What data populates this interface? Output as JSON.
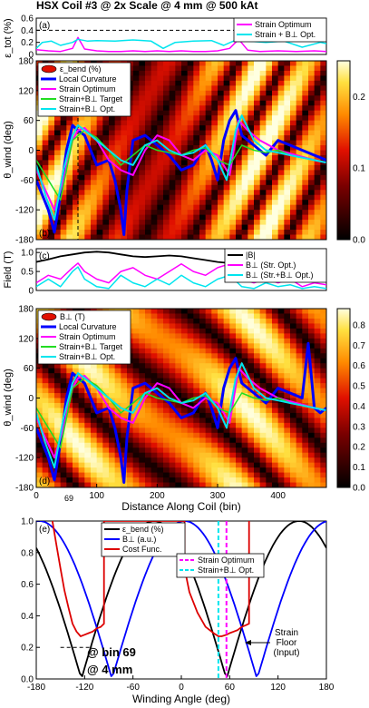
{
  "figure": {
    "title": "HSX Coil #3 @ 2x Scale @ 4 mm @ 500 kAt",
    "xlabel_coil": "Distance Along Coil (bin)",
    "xlabel_angle": "Winding Angle (deg)",
    "bin_marker": "69",
    "annotation_bin": "@ bin 69",
    "annotation_mm": "@ 4 mm",
    "annotation_floor": "Strain\nFloor\n(Input)"
  },
  "colors": {
    "magenta": "#ff00ff",
    "cyan": "#00e5ee",
    "blue": "#0000ff",
    "green": "#22dd22",
    "black": "#000000",
    "red": "#dd0000"
  },
  "chart_data": [
    {
      "panel": "a",
      "type": "line",
      "ylabel": "ε_tot (%)",
      "xlim": [
        0,
        480
      ],
      "ylim": [
        0,
        0.6
      ],
      "yticks": [
        "0",
        "0.2",
        "0.4",
        "0.6"
      ],
      "floor": 0.4,
      "legend": [
        "Strain Optimum",
        "Strain + B⊥ Opt."
      ],
      "series": [
        {
          "name": "Strain Optimum",
          "color": "magenta",
          "x": [
            0,
            20,
            40,
            60,
            69,
            80,
            100,
            120,
            140,
            160,
            180,
            200,
            220,
            240,
            260,
            280,
            300,
            320,
            335,
            350,
            370,
            400,
            430,
            460,
            480
          ],
          "y": [
            0.08,
            0.06,
            0.05,
            0.1,
            0.28,
            0.09,
            0.06,
            0.05,
            0.05,
            0.06,
            0.05,
            0.06,
            0.05,
            0.06,
            0.05,
            0.05,
            0.06,
            0.1,
            0.25,
            0.07,
            0.05,
            0.06,
            0.05,
            0.06,
            0.05
          ]
        },
        {
          "name": "Strain + B⊥ Opt.",
          "color": "cyan",
          "x": [
            0,
            10,
            25,
            40,
            60,
            69,
            85,
            100,
            130,
            160,
            190,
            210,
            230,
            260,
            290,
            310,
            335,
            350,
            380,
            410,
            440,
            470,
            480
          ],
          "y": [
            0.1,
            0.2,
            0.22,
            0.15,
            0.2,
            0.25,
            0.22,
            0.23,
            0.22,
            0.24,
            0.22,
            0.1,
            0.2,
            0.22,
            0.23,
            0.15,
            0.26,
            0.22,
            0.2,
            0.22,
            0.12,
            0.2,
            0.18
          ]
        }
      ]
    },
    {
      "panel": "b",
      "type": "heatmap",
      "ylabel": "θ_wind (deg)",
      "xlim": [
        0,
        480
      ],
      "ylim": [
        -180,
        180
      ],
      "yticks": [
        "-180",
        "-120",
        "-60",
        "0",
        "60",
        "120",
        "180"
      ],
      "colorbar_ticks": [
        "0.0",
        "0.1",
        "0.2"
      ],
      "colorbar_range": [
        0,
        0.25
      ],
      "legend_title": "ε_bend (%)",
      "legend": [
        "Local Curvature",
        "Strain Optimum",
        "Strain+B⊥ Target",
        "Strain+B⊥ Opt."
      ],
      "series": [
        {
          "name": "Local Curvature",
          "color": "blue",
          "x": [
            0,
            20,
            30,
            40,
            50,
            60,
            69,
            80,
            100,
            120,
            130,
            140,
            145,
            150,
            160,
            180,
            200,
            220,
            240,
            260,
            280,
            290,
            300,
            310,
            320,
            330,
            340,
            360,
            380,
            400,
            420,
            440,
            460,
            480
          ],
          "y": [
            -60,
            -120,
            -165,
            -90,
            0,
            50,
            40,
            30,
            -30,
            -20,
            -60,
            -120,
            -170,
            -80,
            20,
            30,
            10,
            -10,
            -40,
            -30,
            10,
            -20,
            -60,
            20,
            60,
            80,
            30,
            10,
            -10,
            20,
            10,
            0,
            -10,
            -20
          ]
        },
        {
          "name": "Strain Optimum",
          "color": "magenta",
          "x": [
            0,
            15,
            30,
            45,
            60,
            69,
            80,
            100,
            120,
            140,
            160,
            180,
            200,
            220,
            240,
            260,
            280,
            300,
            320,
            335,
            350,
            370,
            400,
            430,
            460,
            480
          ],
          "y": [
            -40,
            -80,
            -120,
            -60,
            20,
            40,
            45,
            20,
            -20,
            -40,
            -50,
            0,
            30,
            20,
            -10,
            -20,
            0,
            -10,
            -50,
            60,
            40,
            20,
            0,
            -10,
            -20,
            -25
          ]
        },
        {
          "name": "Strain+B⊥ Target",
          "color": "green",
          "x": [
            0,
            20,
            40,
            60,
            80,
            100,
            120,
            140,
            160,
            180,
            200,
            220,
            240,
            260,
            280,
            300,
            320,
            340,
            360,
            380,
            400,
            420,
            440,
            460,
            480
          ],
          "y": [
            -20,
            -60,
            -100,
            20,
            40,
            25,
            0,
            -30,
            -10,
            10,
            0,
            -5,
            -10,
            0,
            5,
            -20,
            -30,
            10,
            0,
            -5,
            0,
            -10,
            -15,
            -20,
            -25
          ]
        },
        {
          "name": "Strain+B⊥ Opt.",
          "color": "cyan",
          "x": [
            0,
            15,
            30,
            45,
            60,
            69,
            80,
            100,
            120,
            140,
            160,
            180,
            200,
            220,
            240,
            260,
            280,
            300,
            315,
            330,
            340,
            360,
            380,
            400,
            420,
            440,
            460,
            480
          ],
          "y": [
            -30,
            -90,
            -140,
            -40,
            30,
            50,
            40,
            20,
            0,
            -20,
            -30,
            10,
            20,
            0,
            -10,
            -5,
            10,
            -20,
            -60,
            40,
            70,
            20,
            0,
            -5,
            -10,
            -15,
            -20,
            -25
          ]
        }
      ]
    },
    {
      "panel": "c",
      "type": "line",
      "ylabel": "Field (T)",
      "xlim": [
        0,
        480
      ],
      "ylim": [
        0,
        1.1
      ],
      "yticks": [
        "0",
        "0.5",
        "1.0"
      ],
      "legend": [
        "|B|",
        "B⊥ (Str. Opt.)",
        "B⊥ (Str.+B⊥ Opt.)"
      ],
      "series": [
        {
          "name": "|B|",
          "color": "black",
          "x": [
            0,
            20,
            40,
            60,
            80,
            100,
            120,
            140,
            160,
            180,
            200,
            220,
            240,
            260,
            280,
            300,
            320,
            340,
            360,
            380,
            400,
            420,
            440,
            460,
            480
          ],
          "y": [
            0.75,
            0.82,
            0.9,
            0.95,
            1.0,
            1.02,
            1.0,
            0.95,
            0.9,
            0.88,
            0.9,
            0.92,
            0.9,
            0.85,
            0.8,
            0.75,
            0.72,
            0.68,
            0.62,
            0.58,
            0.55,
            0.5,
            0.48,
            0.45,
            0.42
          ]
        },
        {
          "name": "B⊥ (Str. Opt.)",
          "color": "magenta",
          "x": [
            0,
            20,
            40,
            60,
            69,
            80,
            100,
            120,
            140,
            160,
            180,
            200,
            220,
            240,
            260,
            280,
            300,
            320,
            340,
            360,
            380,
            400,
            420,
            440,
            460,
            480
          ],
          "y": [
            0.2,
            0.4,
            0.3,
            0.6,
            0.72,
            0.5,
            0.3,
            0.2,
            0.5,
            0.6,
            0.4,
            0.3,
            0.5,
            0.7,
            0.5,
            0.4,
            0.6,
            0.7,
            0.3,
            0.2,
            0.3,
            0.2,
            0.3,
            0.1,
            0.2,
            0.15
          ]
        },
        {
          "name": "B⊥ (Str.+B⊥ Opt.)",
          "color": "cyan",
          "x": [
            0,
            20,
            40,
            60,
            69,
            80,
            100,
            120,
            140,
            160,
            180,
            200,
            220,
            240,
            260,
            280,
            300,
            320,
            340,
            360,
            380,
            400,
            420,
            440,
            460,
            480
          ],
          "y": [
            0.1,
            0.3,
            0.1,
            0.5,
            0.62,
            0.3,
            0.1,
            0.05,
            0.4,
            0.2,
            0.1,
            0.3,
            0.15,
            0.4,
            0.2,
            0.1,
            0.3,
            0.4,
            0.1,
            0.05,
            0.2,
            0.1,
            0.15,
            0.05,
            0.1,
            0.05
          ]
        }
      ]
    },
    {
      "panel": "d",
      "type": "heatmap",
      "ylabel": "θ_wind (deg)",
      "xlim": [
        0,
        480
      ],
      "ylim": [
        -180,
        180
      ],
      "yticks": [
        "-180",
        "-120",
        "-60",
        "0",
        "60",
        "120",
        "180"
      ],
      "xticks": [
        "0",
        "100",
        "200",
        "300",
        "400"
      ],
      "colorbar_ticks": [
        "0.0",
        "0.1",
        "0.2",
        "0.3",
        "0.4",
        "0.5",
        "0.6",
        "0.7",
        "0.8"
      ],
      "colorbar_range": [
        0,
        0.88
      ],
      "legend_title": "B⊥ (T)",
      "legend": [
        "Local Curvature",
        "Strain Optimum",
        "Strain+B⊥ Target",
        "Strain+B⊥ Opt."
      ],
      "series": [
        {
          "name": "Local Curvature",
          "color": "blue",
          "x": [
            0,
            20,
            30,
            40,
            50,
            60,
            69,
            80,
            100,
            120,
            130,
            140,
            145,
            150,
            160,
            180,
            200,
            220,
            240,
            260,
            280,
            290,
            300,
            310,
            320,
            330,
            340,
            360,
            380,
            400,
            420,
            440,
            450,
            460,
            470,
            480
          ],
          "y": [
            -60,
            -120,
            -165,
            -90,
            0,
            50,
            40,
            30,
            -30,
            -20,
            -60,
            -120,
            -170,
            -80,
            20,
            30,
            10,
            -10,
            -40,
            -30,
            10,
            -20,
            -60,
            20,
            60,
            80,
            30,
            10,
            -10,
            20,
            10,
            0,
            110,
            -20,
            -30,
            -20
          ]
        },
        {
          "name": "Strain Optimum",
          "color": "magenta",
          "x": [
            0,
            15,
            30,
            45,
            60,
            69,
            80,
            100,
            120,
            140,
            160,
            180,
            200,
            220,
            240,
            260,
            280,
            300,
            320,
            335,
            350,
            370,
            400,
            430,
            460,
            480
          ],
          "y": [
            -40,
            -80,
            -120,
            -60,
            20,
            40,
            45,
            20,
            -20,
            -40,
            -50,
            0,
            30,
            20,
            -10,
            -20,
            0,
            -10,
            -50,
            60,
            40,
            20,
            0,
            -10,
            -20,
            -25
          ]
        },
        {
          "name": "Strain+B⊥ Target",
          "color": "green",
          "x": [
            0,
            20,
            40,
            60,
            80,
            100,
            120,
            140,
            160,
            180,
            200,
            220,
            240,
            260,
            280,
            300,
            320,
            340,
            360,
            380,
            400,
            420,
            440,
            460,
            480
          ],
          "y": [
            -20,
            -60,
            -100,
            20,
            40,
            25,
            0,
            -30,
            -10,
            10,
            0,
            -5,
            -10,
            0,
            5,
            -20,
            -30,
            10,
            0,
            -5,
            0,
            -10,
            -15,
            -20,
            -25
          ]
        },
        {
          "name": "Strain+B⊥ Opt.",
          "color": "cyan",
          "x": [
            0,
            15,
            30,
            45,
            60,
            69,
            80,
            100,
            120,
            140,
            160,
            180,
            200,
            220,
            240,
            260,
            280,
            300,
            315,
            330,
            340,
            360,
            380,
            400,
            420,
            440,
            460,
            480
          ],
          "y": [
            -30,
            -90,
            -140,
            -40,
            30,
            50,
            40,
            20,
            0,
            -20,
            -30,
            10,
            20,
            0,
            -10,
            -5,
            10,
            -20,
            -60,
            40,
            70,
            20,
            0,
            -5,
            -10,
            -15,
            -20,
            -25
          ]
        }
      ]
    },
    {
      "panel": "e",
      "type": "line",
      "ylabel": "",
      "xlabel": "Winding Angle (deg)",
      "xlim": [
        -180,
        180
      ],
      "ylim": [
        0,
        1.0
      ],
      "xticks": [
        "-180",
        "-120",
        "-60",
        "0",
        "60",
        "120",
        "180"
      ],
      "yticks": [
        "0.0",
        "0.2",
        "0.4",
        "0.6",
        "0.8",
        "1.0"
      ],
      "legend": [
        "ε_bend (%)",
        "B⊥ (a.u.)",
        "Cost Func.",
        "Strain Optimum",
        "Strain+B⊥ Opt."
      ],
      "floor": 0.2,
      "optima": {
        "Strain Optimum": 56,
        "Strain+B⊥ Opt.": 46
      },
      "series": [
        {
          "name": "ε_bend (%)",
          "color": "black",
          "kind": "abs_sin",
          "zero": -124
        },
        {
          "name": "B⊥ (a.u.)",
          "color": "blue",
          "kind": "abs_cos",
          "zero": -86
        },
        {
          "name": "Cost Func.",
          "color": "red",
          "x": [
            -160,
            -155,
            -150,
            -145,
            -140,
            -135,
            -130,
            -125,
            -120,
            -115,
            -110,
            -105,
            -100,
            -96,
            -96,
            -90,
            -80,
            -70,
            -60,
            -50,
            -40,
            -30,
            -20,
            -10,
            0,
            4,
            4,
            10,
            20,
            30,
            40,
            46,
            50,
            56,
            60,
            65,
            70,
            75,
            80,
            84,
            84
          ],
          "y": [
            1.0,
            0.85,
            0.7,
            0.56,
            0.45,
            0.35,
            0.3,
            0.27,
            0.28,
            0.29,
            0.3,
            0.32,
            0.33,
            0.35,
            1.0,
            1.0,
            1.0,
            1.0,
            1.0,
            1.0,
            1.0,
            1.0,
            1.0,
            1.0,
            1.0,
            1.0,
            0.7,
            0.55,
            0.42,
            0.33,
            0.29,
            0.27,
            0.27,
            0.28,
            0.29,
            0.3,
            0.31,
            0.33,
            0.34,
            0.35,
            1.0
          ]
        }
      ]
    }
  ]
}
